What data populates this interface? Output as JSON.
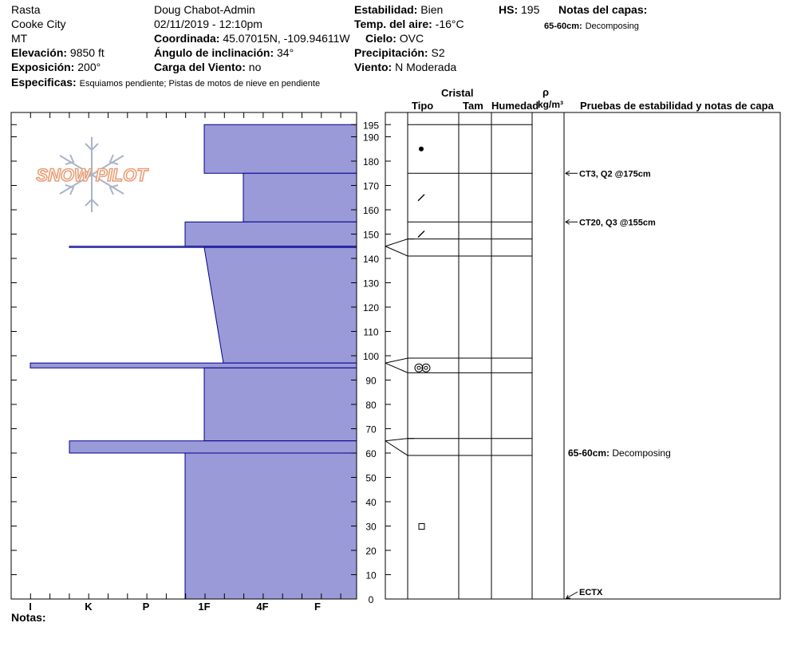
{
  "header": {
    "location": "Rasta",
    "area": "Cooke City",
    "state": "MT",
    "elevation_label": "Elevación:",
    "elevation_value": "9850 ft",
    "aspect_label": "Exposición:",
    "aspect_value": "200°",
    "specifics_label": "Especificas:",
    "specifics_value": "Esquiamos pendiente;  Pistas de motos de nieve en pendiente",
    "observer": "Doug Chabot-Admin",
    "datetime": "02/11/2019 - 12:10pm",
    "coord_label": "Coordinada:",
    "coord_value": "45.07015N, -109.94611W",
    "incline_label": "Ángulo de inclinación:",
    "incline_value": "34°",
    "wind_load_label": "Carga del Viento:",
    "wind_load_value": "no",
    "stability_label": "Estabilidad:",
    "stability_value": "Bien",
    "air_temp_label": "Temp. del aire:",
    "air_temp_value": "-16°C",
    "sky_label": "Cielo:",
    "sky_value": "OVC",
    "precip_label": "Precipitación:",
    "precip_value": "S2",
    "wind_label": "Viento:",
    "wind_value": "N Moderada",
    "hs_label": "HS:",
    "hs_value": "195",
    "layer_notes_label": "Notas del capas:",
    "layer_note_range": "65-60cm:",
    "layer_note_text": "Decomposing"
  },
  "columns": {
    "crystal": "Cristal",
    "type": "Tipo",
    "size": "Tam",
    "moisture": "Humedad",
    "rho": "ρ",
    "density_unit": "kg/m³",
    "tests": "Pruebas de estabilidad y notas de capa"
  },
  "notes_label": "Notas:",
  "logo_text": "SNOW PILOT",
  "colors": {
    "hardness_fill": "#9a9ad8",
    "hardness_stroke": "#00008b"
  },
  "chart_data": {
    "type": "area",
    "title": "",
    "x_label": "",
    "y_label": "",
    "hardness_categories": [
      "I",
      "K",
      "P",
      "1F",
      "4F",
      "F"
    ],
    "x_axis": "hand hardness",
    "y_axis": "height (cm)",
    "ylim": [
      0,
      200
    ],
    "y_ticks": [
      0,
      10,
      20,
      30,
      40,
      50,
      60,
      70,
      80,
      90,
      100,
      110,
      120,
      130,
      140,
      150,
      160,
      170,
      180,
      190,
      195
    ],
    "layers": [
      {
        "bottom": 175,
        "top": 195,
        "hardness_bottom": "1F",
        "hardness_top": "1F"
      },
      {
        "bottom": 155,
        "top": 175,
        "hardness_bottom": "4F+",
        "hardness_top": "4F+"
      },
      {
        "bottom": 145,
        "top": 155,
        "hardness_bottom": "1F+",
        "hardness_top": "1F+"
      },
      {
        "bottom": 144.5,
        "top": 145,
        "hardness_bottom": "K+",
        "hardness_top": "K+"
      },
      {
        "bottom": 97,
        "top": 144.5,
        "hardness_bottom": "1F-",
        "hardness_top": "1F"
      },
      {
        "bottom": 95,
        "top": 97,
        "hardness_bottom": "I",
        "hardness_top": "I"
      },
      {
        "bottom": 65,
        "top": 95,
        "hardness_bottom": "1F",
        "hardness_top": "1F"
      },
      {
        "bottom": 60,
        "top": 65,
        "hardness_bottom": "K+",
        "hardness_top": "K+"
      },
      {
        "bottom": 0,
        "top": 60,
        "hardness_bottom": "1F+",
        "hardness_top": "1F+"
      }
    ],
    "layer_boundaries": [
      195,
      175,
      155,
      148,
      141,
      99,
      93,
      66,
      59
    ],
    "grain_symbols": [
      {
        "height": 185,
        "icon": "dot-icon"
      },
      {
        "height": 165,
        "icon": "slash-icon"
      },
      {
        "height": 150,
        "icon": "slash-icon"
      },
      {
        "height": 95,
        "icon": "double-ring-icon"
      },
      {
        "height": 30,
        "icon": "square-icon"
      }
    ],
    "test_annotations": [
      {
        "height": 175,
        "text": "CT3, Q2 @175cm"
      },
      {
        "height": 155,
        "text": "CT20, Q3 @155cm"
      },
      {
        "height": 60,
        "range": "65-60cm:",
        "text": "Decomposing"
      },
      {
        "height": 0,
        "text": "ECTX"
      }
    ]
  }
}
